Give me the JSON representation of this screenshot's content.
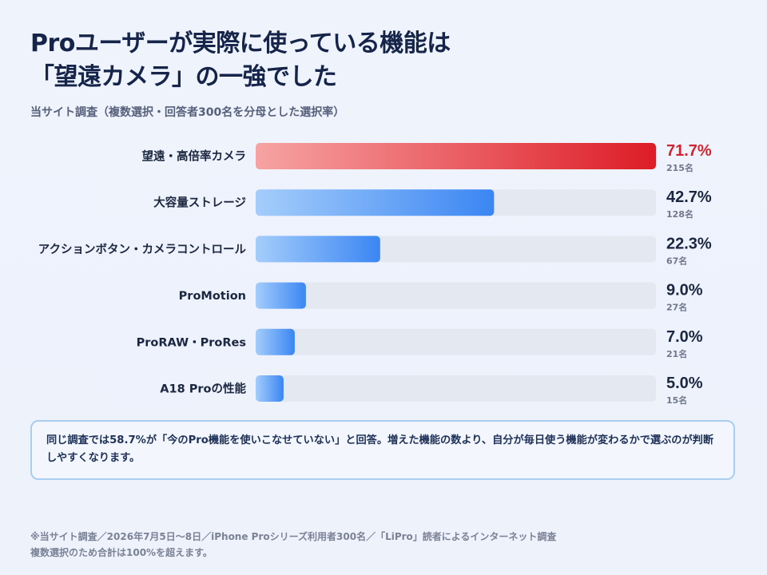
{
  "header": {
    "title_line1": "Proユーザーが実際に使っている機能は",
    "title_line2": "「望遠カメラ」の一強でした",
    "subtitle": "当サイト調査（複数選択・回答者300名を分母とした選択率）"
  },
  "chart_data": {
    "type": "bar",
    "orientation": "horizontal",
    "categories": [
      "望遠・高倍率カメラ",
      "大容量ストレージ",
      "アクションボタン・カメラコントロール",
      "ProMotion",
      "ProRAW・ProRes",
      "A18 Proの性能"
    ],
    "values": [
      71.7,
      42.7,
      22.3,
      9.0,
      7.0,
      5.0
    ],
    "value_labels": [
      "71.7%",
      "42.7%",
      "22.3%",
      "9.0%",
      "7.0%",
      "5.0%"
    ],
    "counts": [
      "215名",
      "128名",
      "67名",
      "27名",
      "21名",
      "15名"
    ],
    "xlim": [
      0,
      71.7
    ],
    "unit": "%",
    "grid": false,
    "highlight_index": 0,
    "colors": {
      "highlight_start": "#f7a3a3",
      "highlight_end": "#dd1c26",
      "bar_start": "#a4cdfb",
      "bar_end": "#3b86f3",
      "track": "#e3e8f1",
      "highlight_label": "#d42330",
      "label": "#1b2740",
      "count": "#6f788c"
    }
  },
  "callout": {
    "text": "同じ調査では58.7%が「今のPro機能を使いこなせていない」と回答。増えた機能の数より、自分が毎日使う機能が変わるかで選ぶのが判断しやすくなります。"
  },
  "footnote": {
    "line1": "※当サイト調査／2026年7月5日〜8日／iPhone Proシリーズ利用者300名／「LiPro」読者によるインターネット調査",
    "line2": "複数選択のため合計は100%を超えます。"
  }
}
